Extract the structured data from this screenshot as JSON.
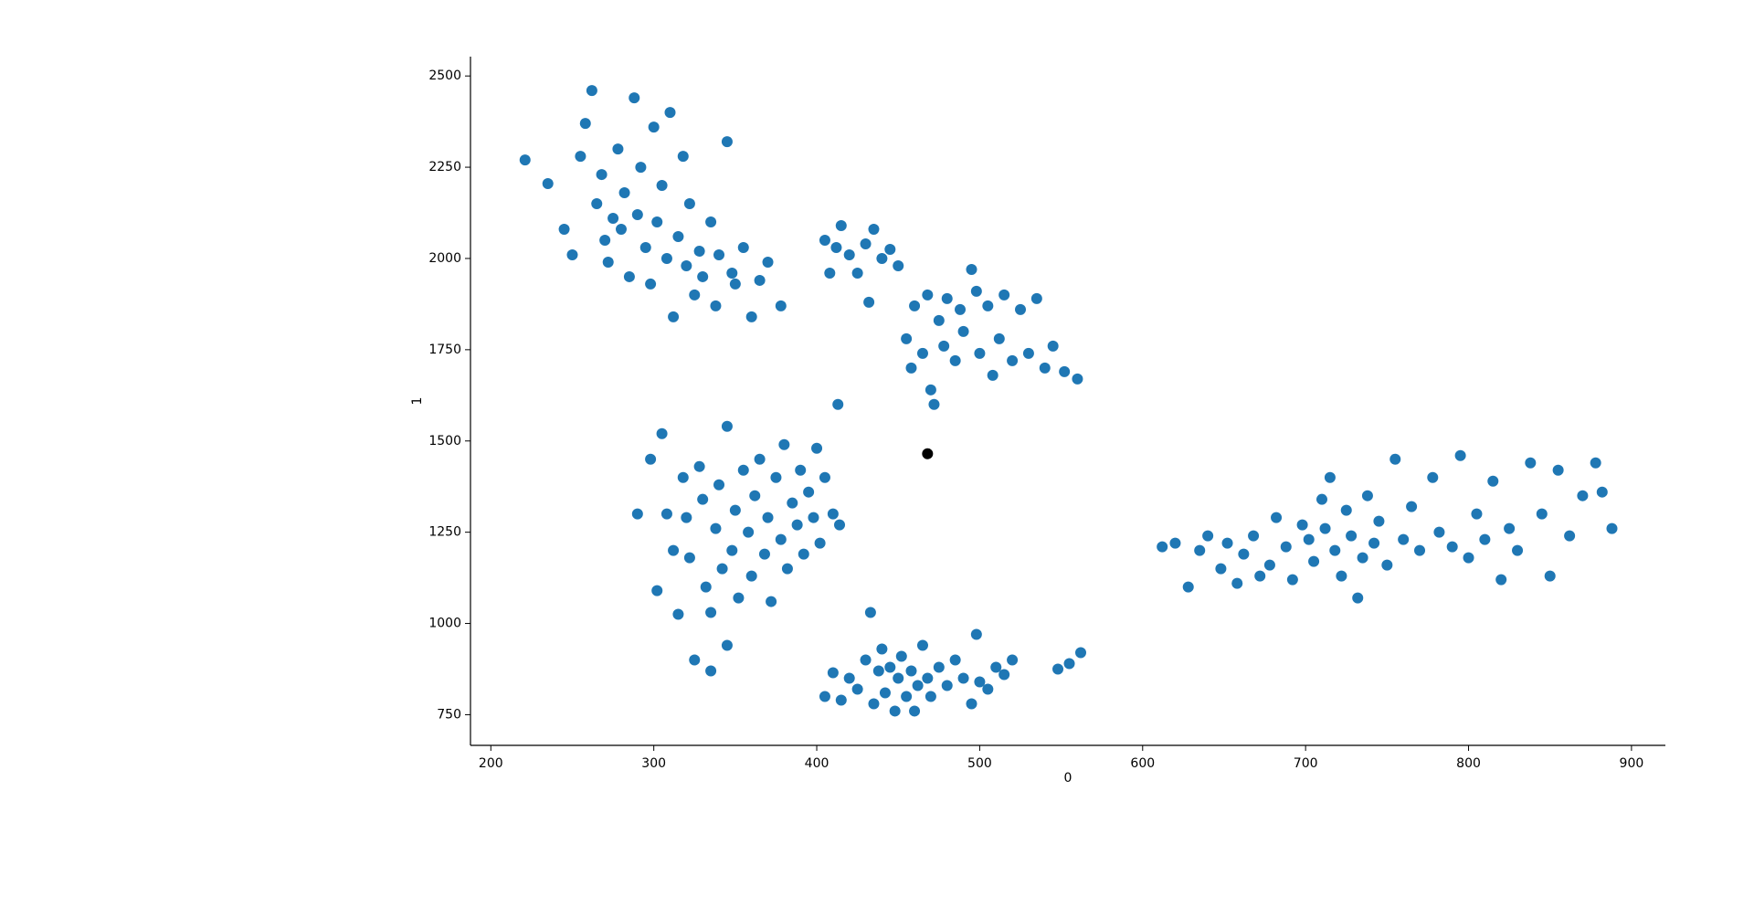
{
  "chart_data": {
    "type": "scatter",
    "xlabel": "0",
    "ylabel": "1",
    "xlim": [
      187.5,
      920.8
    ],
    "ylim": [
      666,
      2553
    ],
    "xticks": [
      200,
      300,
      400,
      500,
      600,
      700,
      800,
      900
    ],
    "yticks": [
      750,
      1000,
      1250,
      1500,
      1750,
      2000,
      2250,
      2500
    ],
    "grid": false,
    "series": [
      {
        "color": "#1f77b4",
        "x": [
          221,
          235,
          245,
          250,
          255,
          258,
          262,
          265,
          268,
          270,
          272,
          275,
          278,
          280,
          282,
          285,
          288,
          290,
          292,
          295,
          298,
          300,
          302,
          305,
          308,
          310,
          312,
          315,
          318,
          320,
          322,
          325,
          328,
          330,
          335,
          338,
          340,
          345,
          348,
          350,
          355,
          360,
          365,
          370,
          378,
          405,
          408,
          412,
          415,
          420,
          425,
          430,
          432,
          435,
          440,
          445,
          450,
          455,
          458,
          460,
          465,
          468,
          470,
          472,
          475,
          478,
          480,
          485,
          488,
          490,
          495,
          498,
          500,
          505,
          508,
          512,
          515,
          520,
          525,
          530,
          535,
          540,
          545,
          552,
          560,
          302,
          305,
          308,
          312,
          315,
          318,
          320,
          322,
          325,
          328,
          330,
          332,
          335,
          338,
          340,
          342,
          345,
          348,
          350,
          352,
          355,
          358,
          360,
          362,
          365,
          368,
          370,
          372,
          375,
          378,
          380,
          382,
          385,
          388,
          390,
          392,
          395,
          398,
          400,
          402,
          405,
          410,
          413,
          414,
          335,
          345,
          290,
          298,
          405,
          410,
          415,
          420,
          425,
          430,
          433,
          435,
          438,
          440,
          442,
          445,
          448,
          450,
          452,
          455,
          458,
          460,
          462,
          465,
          468,
          470,
          475,
          480,
          485,
          490,
          495,
          498,
          500,
          505,
          510,
          515,
          520,
          548,
          555,
          562,
          612,
          620,
          628,
          635,
          640,
          648,
          652,
          658,
          662,
          668,
          672,
          678,
          682,
          688,
          692,
          698,
          702,
          705,
          710,
          712,
          715,
          718,
          722,
          725,
          728,
          732,
          735,
          738,
          742,
          745,
          750,
          755,
          760,
          765,
          770,
          778,
          782,
          790,
          795,
          800,
          805,
          810,
          815,
          820,
          825,
          830,
          838,
          845,
          850,
          855,
          862,
          870,
          878,
          882,
          888
        ],
        "values": [
          2270,
          2205,
          2080,
          2010,
          2280,
          2370,
          2460,
          2150,
          2230,
          2050,
          1990,
          2110,
          2300,
          2080,
          2180,
          1950,
          2440,
          2120,
          2250,
          2030,
          1930,
          2360,
          2100,
          2200,
          2000,
          2400,
          1840,
          2060,
          2280,
          1980,
          2150,
          1900,
          2020,
          1950,
          2100,
          1870,
          2010,
          2320,
          1960,
          1930,
          2030,
          1840,
          1940,
          1990,
          1870,
          2050,
          1960,
          2030,
          2090,
          2010,
          1960,
          2040,
          1880,
          2080,
          2000,
          2025,
          1980,
          1780,
          1700,
          1870,
          1740,
          1900,
          1640,
          1600,
          1830,
          1760,
          1890,
          1720,
          1860,
          1800,
          1970,
          1910,
          1740,
          1870,
          1680,
          1780,
          1900,
          1720,
          1860,
          1740,
          1890,
          1700,
          1760,
          1690,
          1670,
          1090,
          1520,
          1300,
          1200,
          1025,
          1400,
          1290,
          1180,
          900,
          1430,
          1340,
          1100,
          1030,
          1260,
          1380,
          1150,
          1540,
          1200,
          1310,
          1070,
          1420,
          1250,
          1130,
          1350,
          1450,
          1190,
          1290,
          1060,
          1400,
          1230,
          1490,
          1150,
          1330,
          1270,
          1420,
          1190,
          1360,
          1290,
          1480,
          1220,
          1400,
          1300,
          1600,
          1270,
          870,
          940,
          1300,
          1450,
          800,
          865,
          790,
          850,
          820,
          900,
          1030,
          780,
          870,
          930,
          810,
          880,
          760,
          850,
          910,
          800,
          870,
          760,
          830,
          940,
          850,
          800,
          880,
          830,
          900,
          850,
          780,
          970,
          840,
          820,
          880,
          860,
          900,
          875,
          890,
          920,
          1210,
          1220,
          1100,
          1200,
          1240,
          1150,
          1220,
          1110,
          1190,
          1240,
          1130,
          1160,
          1290,
          1210,
          1120,
          1270,
          1230,
          1170,
          1340,
          1260,
          1400,
          1200,
          1130,
          1310,
          1240,
          1070,
          1180,
          1350,
          1220,
          1280,
          1160,
          1450,
          1230,
          1320,
          1200,
          1400,
          1250,
          1210,
          1460,
          1180,
          1300,
          1230,
          1390,
          1120,
          1260,
          1200,
          1440,
          1300,
          1130,
          1420,
          1240,
          1350,
          1440,
          1360,
          1260
        ]
      },
      {
        "color": "#000000",
        "x": [
          468
        ],
        "values": [
          1465
        ]
      }
    ]
  }
}
